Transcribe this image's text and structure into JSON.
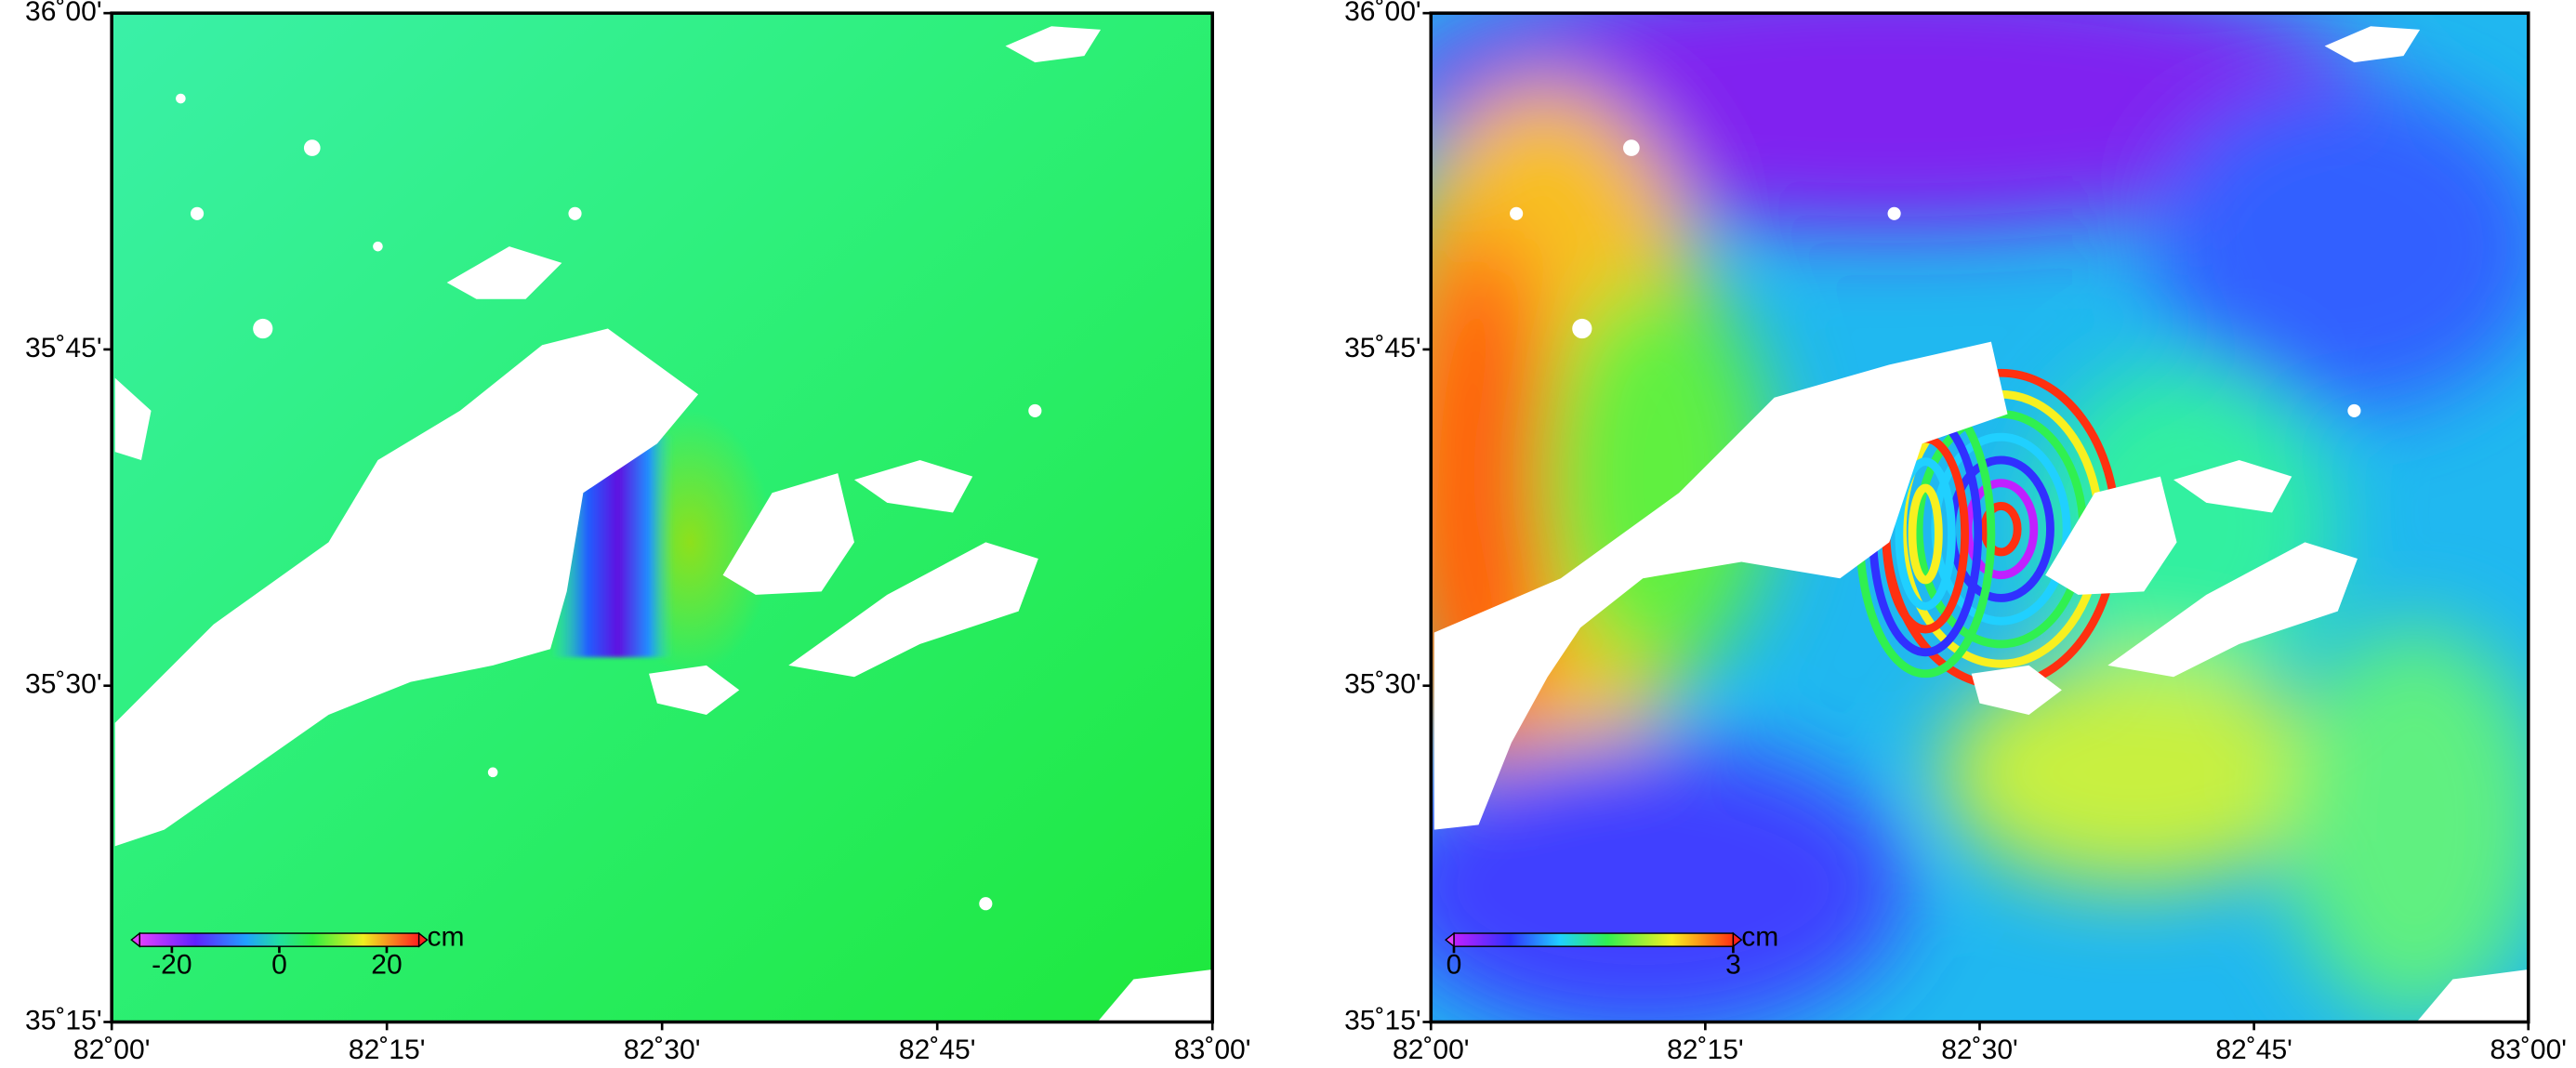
{
  "maps": [
    {
      "lon_range": [
        82,
        83
      ],
      "lat_range": [
        35.25,
        36
      ],
      "lon_ticks": [
        {
          "value": 82,
          "label": "82˚00'"
        },
        {
          "value": 82.25,
          "label": "82˚15'"
        },
        {
          "value": 82.5,
          "label": "82˚30'"
        },
        {
          "value": 82.75,
          "label": "82˚45'"
        },
        {
          "value": 83,
          "label": "83˚00'"
        }
      ],
      "lat_ticks": [
        {
          "value": 36,
          "label": "36˚00'"
        },
        {
          "value": 35.75,
          "label": "35˚45'"
        },
        {
          "value": 35.5,
          "label": "35˚30'"
        },
        {
          "value": 35.25,
          "label": "35˚15'"
        }
      ],
      "colorbar": {
        "range": [
          -26,
          26
        ],
        "ticks": [
          -20,
          0,
          20
        ],
        "unit": "cm"
      }
    },
    {
      "lon_range": [
        82,
        83
      ],
      "lat_range": [
        35.25,
        36
      ],
      "lon_ticks": [
        {
          "value": 82,
          "label": "82˚00'"
        },
        {
          "value": 82.25,
          "label": "82˚15'"
        },
        {
          "value": 82.5,
          "label": "82˚30'"
        },
        {
          "value": 82.75,
          "label": "82˚45'"
        },
        {
          "value": 83,
          "label": "83˚00'"
        }
      ],
      "lat_ticks": [
        {
          "value": 36,
          "label": "36˚00'"
        },
        {
          "value": 35.75,
          "label": "35˚45'"
        },
        {
          "value": 35.5,
          "label": "35˚30'"
        },
        {
          "value": 35.25,
          "label": "35˚15'"
        }
      ],
      "colorbar": {
        "range": [
          0,
          3
        ],
        "ticks": [
          0,
          3
        ],
        "unit": "cm"
      }
    }
  ]
}
